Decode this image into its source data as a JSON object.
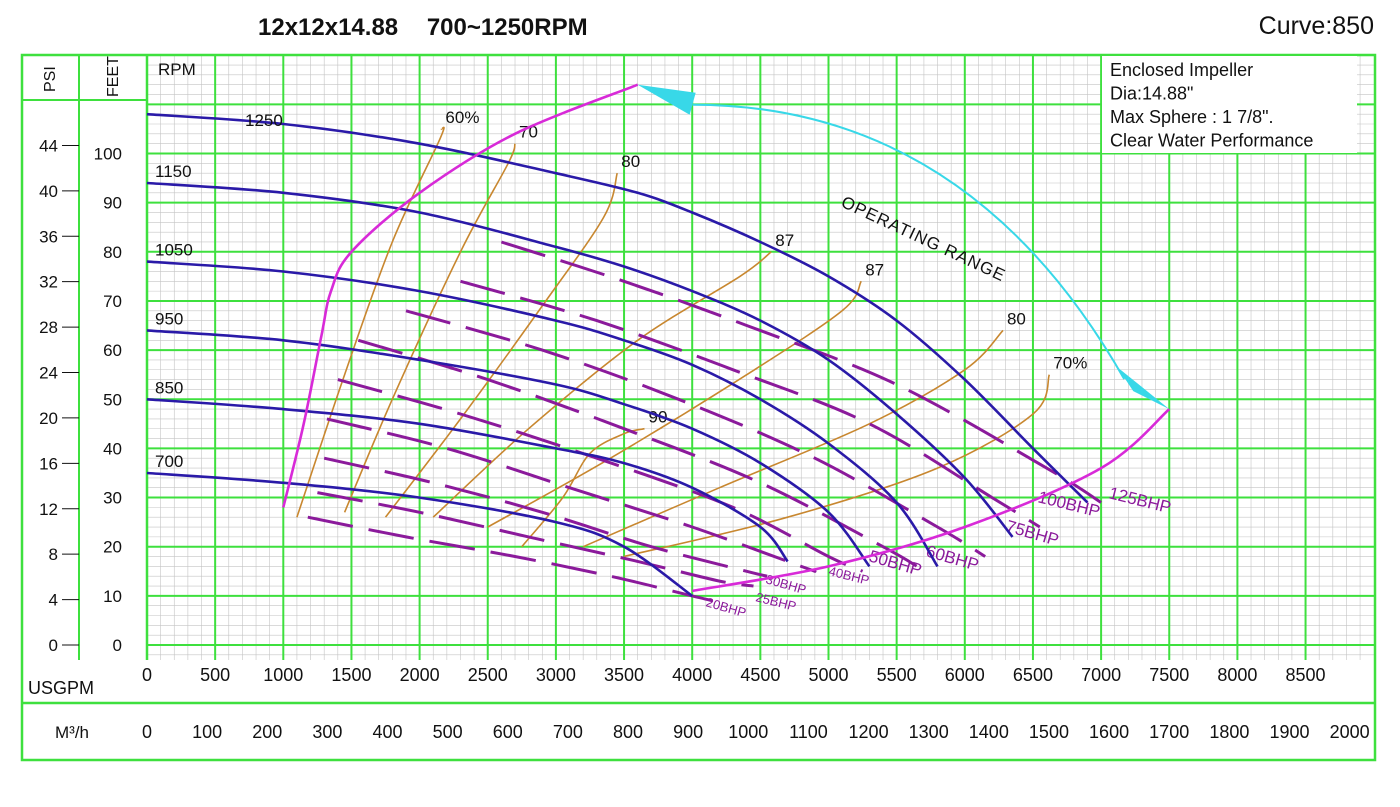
{
  "header": {
    "title": "12x12x14.88    700~1250RPM",
    "curve_label": "Curve:850"
  },
  "colors": {
    "grid": "#3ee03e",
    "rpm_curve": "#2a1aa8",
    "bhp_curve": "#8b1a9b",
    "efficiency": "#c8872f",
    "envelope": "#d82ad8",
    "operating_arrow": "#38d8e8"
  },
  "chart_data": {
    "type": "line",
    "title": "12x12x14.88 700~1250RPM",
    "curve_number": "Curve:850",
    "info_box": [
      "Enclosed Impeller",
      "Dia:14.88\"",
      "Max Sphere : 1 7/8\".",
      "Clear Water Performance"
    ],
    "xlabel": "USGPM",
    "x2label": "M³/h",
    "ylabel_left": "PSI",
    "ylabel_right": "FEET",
    "rpm_header": "RPM",
    "xlim": [
      0,
      8500
    ],
    "ylim_feet": [
      0,
      110
    ],
    "x_ticks": [
      0,
      500,
      1000,
      1500,
      2000,
      2500,
      3000,
      3500,
      4000,
      4500,
      5000,
      5500,
      6000,
      6500,
      7000,
      7500,
      8000,
      8500
    ],
    "m3h_ticks": [
      0,
      100,
      200,
      300,
      400,
      500,
      600,
      700,
      800,
      900,
      1000,
      1100,
      1200,
      1300,
      1400,
      1500,
      1600,
      1700,
      1800,
      1900,
      2000
    ],
    "feet_ticks": [
      0,
      10,
      20,
      30,
      40,
      50,
      60,
      70,
      80,
      90,
      100
    ],
    "psi_ticks": [
      0,
      4,
      8,
      12,
      16,
      20,
      24,
      28,
      32,
      36,
      40,
      44
    ],
    "grid": true,
    "rpm_series": [
      {
        "name": "1250",
        "x": [
          0,
          1000,
          2000,
          3000,
          3600,
          4000,
          4500,
          5000,
          5500,
          6000,
          6500,
          6900
        ],
        "y": [
          108,
          106,
          102,
          96,
          92,
          88,
          82,
          75,
          66,
          54,
          40,
          29
        ]
      },
      {
        "name": "1150",
        "x": [
          0,
          1000,
          2000,
          3000,
          3500,
          4000,
          4500,
          5000,
          5500,
          6000,
          6350
        ],
        "y": [
          94,
          92,
          88,
          81,
          77,
          72,
          66,
          58,
          47,
          34,
          22
        ]
      },
      {
        "name": "1050",
        "x": [
          0,
          1000,
          2000,
          3000,
          3500,
          4000,
          4500,
          5000,
          5500,
          5800
        ],
        "y": [
          78,
          76,
          72,
          66,
          62,
          57,
          50,
          41,
          29,
          16
        ]
      },
      {
        "name": "950",
        "x": [
          0,
          1000,
          2000,
          3000,
          3500,
          4000,
          4500,
          5000,
          5300
        ],
        "y": [
          64,
          62,
          58,
          53,
          49,
          44,
          37,
          27,
          16
        ]
      },
      {
        "name": "850",
        "x": [
          0,
          1000,
          2000,
          3000,
          3500,
          4000,
          4500,
          4700
        ],
        "y": [
          50,
          48,
          45,
          40,
          37,
          32,
          24,
          17
        ]
      },
      {
        "name": "700",
        "x": [
          0,
          1000,
          2000,
          3000,
          3500,
          4000
        ],
        "y": [
          35,
          33,
          30,
          25,
          20,
          10
        ]
      }
    ],
    "efficiency_lines": [
      {
        "name": "60%",
        "x": [
          1100,
          1450,
          1800,
          2150,
          2160
        ],
        "y": [
          26,
          55,
          82,
          103,
          105
        ]
      },
      {
        "name": "70",
        "x": [
          1450,
          1800,
          2300,
          2650,
          2700
        ],
        "y": [
          27,
          50,
          80,
          98,
          102
        ]
      },
      {
        "name": "80",
        "x": [
          1750,
          2300,
          2900,
          3350,
          3450
        ],
        "y": [
          26,
          46,
          69,
          87,
          96
        ]
      },
      {
        "name": "87",
        "x": [
          2100,
          2800,
          3600,
          4350,
          4580
        ],
        "y": [
          26,
          44,
          62,
          75,
          80
        ]
      },
      {
        "name": "87",
        "x": [
          2500,
          3400,
          4400,
          5100,
          5240
        ],
        "y": [
          24,
          38,
          55,
          68,
          74
        ]
      },
      {
        "name": "80",
        "x": [
          3200,
          4200,
          5300,
          6000,
          6280
        ],
        "y": [
          20,
          32,
          45,
          56,
          64
        ]
      },
      {
        "name": "70%",
        "x": [
          3500,
          4700,
          5800,
          6500,
          6620
        ],
        "y": [
          18,
          26,
          36,
          47,
          55
        ]
      },
      {
        "name": "90",
        "x": [
          2750,
          3050,
          3250,
          3500,
          3650
        ],
        "y": [
          20,
          30,
          39,
          43,
          44
        ]
      }
    ],
    "bhp_lines": [
      {
        "name": "125BHP",
        "x": [
          2600,
          3500,
          4400,
          5500,
          6600,
          7000
        ],
        "y": [
          82,
          74,
          65,
          53,
          36,
          29
        ]
      },
      {
        "name": "100BHP",
        "x": [
          2300,
          3300,
          4300,
          5300,
          6200,
          6550
        ],
        "y": [
          74,
          66,
          56,
          45,
          30,
          24
        ]
      },
      {
        "name": "75BHP",
        "x": [
          1900,
          2900,
          3900,
          4900,
          5800,
          6150
        ],
        "y": [
          68,
          60,
          50,
          38,
          24,
          18
        ]
      },
      {
        "name": "60BHP",
        "x": [
          1550,
          2500,
          3500,
          4500,
          5400,
          5650
        ],
        "y": [
          62,
          54,
          44,
          33,
          20,
          16
        ]
      },
      {
        "name": "50BHP",
        "x": [
          1400,
          2300,
          3300,
          4300,
          5000,
          5250
        ],
        "y": [
          54,
          47,
          38,
          28,
          18,
          15
        ]
      },
      {
        "name": "40BHP",
        "x": [
          1320,
          2200,
          3100,
          4000,
          4800,
          4900
        ],
        "y": [
          46,
          40,
          32,
          24,
          16,
          15
        ]
      },
      {
        "name": "30BHP",
        "x": [
          1300,
          2100,
          2900,
          3700,
          4400,
          4550
        ],
        "y": [
          38,
          33,
          27,
          20,
          15,
          14
        ]
      },
      {
        "name": "25BHP",
        "x": [
          1250,
          2000,
          2800,
          3600,
          4200,
          4450
        ],
        "y": [
          31,
          27,
          22,
          17,
          13,
          12
        ]
      },
      {
        "name": "20BHP",
        "x": [
          1180,
          1900,
          2700,
          3400,
          4000,
          4150
        ],
        "y": [
          26,
          22,
          18,
          14,
          10,
          9
        ]
      }
    ],
    "envelope": {
      "left": {
        "x": [
          1000,
          1150,
          1280,
          1350,
          1500,
          2000,
          2700,
          3600
        ],
        "y": [
          28,
          45,
          63,
          72,
          80,
          92,
          104,
          114
        ]
      },
      "bottom": {
        "x": [
          4000,
          5000,
          6000,
          7000,
          7500
        ],
        "y": [
          11,
          16,
          24,
          36,
          48
        ]
      }
    },
    "operating_range": {
      "label": "OPERATING RANGE",
      "from": [
        3600,
        114
      ],
      "to": [
        7500,
        48
      ]
    },
    "annotations": [
      "60%",
      "70",
      "80",
      "87",
      "87",
      "80",
      "70%",
      "90",
      "125BHP",
      "100BHP",
      "75BHP",
      "60BHP",
      "50BHP",
      "40BHP",
      "30BHP",
      "25BHP",
      "20BHP"
    ]
  }
}
